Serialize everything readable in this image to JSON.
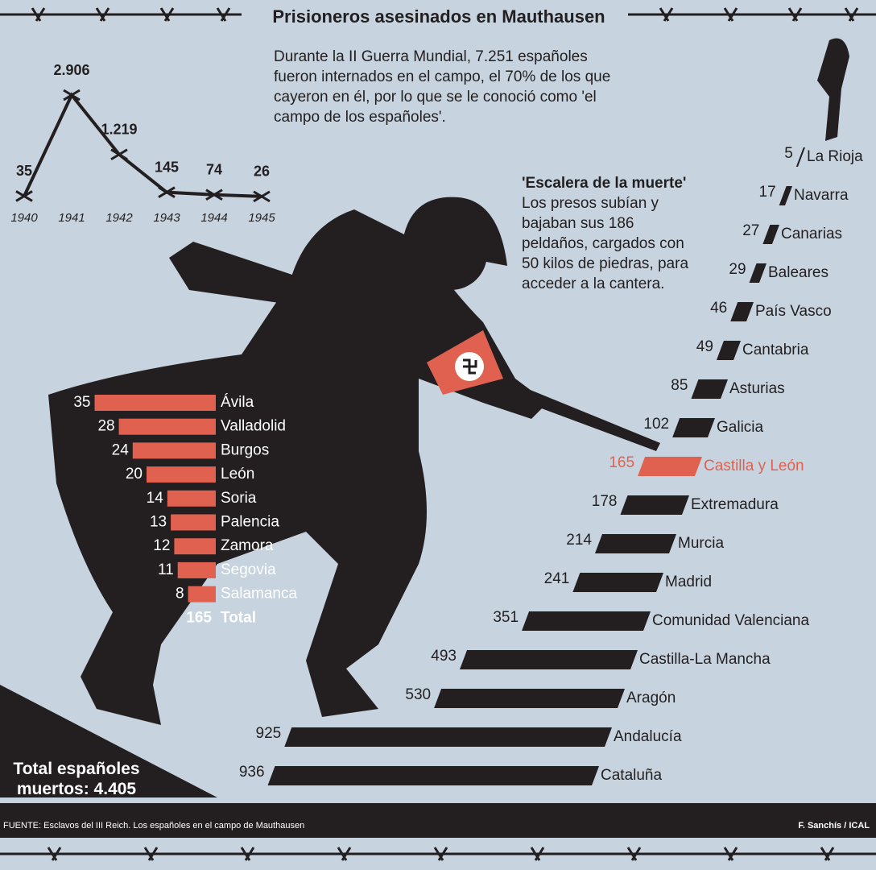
{
  "title": "Prisioneros asesinados en Mauthausen",
  "intro": "Durante la II Guerra Mundial, 7.251 españoles fueron internados en el campo, el 70% de los que cayeron en él, por lo que se le conoció como 'el campo de los españoles'.",
  "note_title": "'Escalera de la muerte'",
  "note_text": "Los presos subían y bajaban sus 186 peldaños, cargados con 50 kilos de piedras, para acceder a la cantera.",
  "total_text": "Total españoles muertos: 4.405",
  "source": "FUENTE: Esclavos del III Reich. Los españoles en el campo de Mauthausen",
  "credit": "F. Sanchís / ICAL",
  "chart_data": [
    {
      "type": "line",
      "categories": [
        "1940",
        "1941",
        "1942",
        "1943",
        "1944",
        "1945"
      ],
      "values": [
        35,
        2906,
        1219,
        145,
        74,
        26
      ],
      "value_labels": [
        "35",
        "2.906",
        "1.219",
        "145",
        "74",
        "26"
      ],
      "color": "#231f20"
    },
    {
      "type": "bar",
      "categories": [
        "Ávila",
        "Valladolid",
        "Burgos",
        "León",
        "Soria",
        "Palencia",
        "Zamora",
        "Segovia",
        "Salamanca"
      ],
      "values": [
        35,
        28,
        24,
        20,
        14,
        13,
        12,
        11,
        8
      ],
      "color": "#e0614f",
      "total_label": "Total",
      "total_value": 165
    },
    {
      "type": "bar",
      "categories": [
        "La Rioja",
        "Navarra",
        "Canarias",
        "Baleares",
        "País Vasco",
        "Cantabria",
        "Asturias",
        "Galicia",
        "Castilla y León",
        "Extremadura",
        "Murcia",
        "Madrid",
        "Comunidad Valenciana",
        "Castilla-La Mancha",
        "Aragón",
        "Andalucía",
        "Cataluña"
      ],
      "values": [
        5,
        17,
        27,
        29,
        46,
        49,
        85,
        102,
        165,
        178,
        214,
        241,
        351,
        493,
        530,
        925,
        936
      ],
      "colors": [
        "#231f20",
        "#231f20",
        "#231f20",
        "#231f20",
        "#231f20",
        "#231f20",
        "#231f20",
        "#231f20",
        "#e0614f",
        "#231f20",
        "#231f20",
        "#231f20",
        "#231f20",
        "#231f20",
        "#231f20",
        "#231f20",
        "#231f20"
      ]
    }
  ]
}
